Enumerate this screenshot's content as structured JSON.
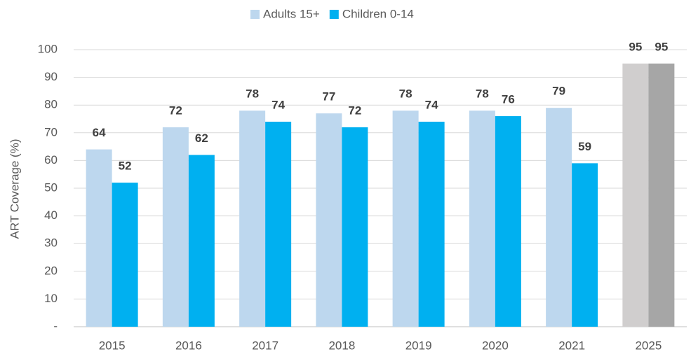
{
  "chart_data": {
    "type": "bar",
    "y_label": "ART Coverage (%)",
    "categories": [
      "2015",
      "2016",
      "2017",
      "2018",
      "2019",
      "2020",
      "2021",
      "2025"
    ],
    "series": [
      {
        "name": "Adults 15+",
        "color": "#bdd7ee",
        "colors": [
          "#bdd7ee",
          "#bdd7ee",
          "#bdd7ee",
          "#bdd7ee",
          "#bdd7ee",
          "#bdd7ee",
          "#bdd7ee",
          "#d0cece"
        ],
        "values": [
          64,
          72,
          78,
          77,
          78,
          78,
          79,
          95
        ]
      },
      {
        "name": "Children 0-14",
        "color": "#00b0f0",
        "colors": [
          "#00b0f0",
          "#00b0f0",
          "#00b0f0",
          "#00b0f0",
          "#00b0f0",
          "#00b0f0",
          "#00b0f0",
          "#a6a6a6"
        ],
        "values": [
          52,
          62,
          74,
          72,
          74,
          76,
          59,
          95
        ]
      }
    ],
    "ylim": [
      0,
      100
    ],
    "yticks": [
      {
        "value": 0,
        "label": "-"
      },
      10,
      20,
      30,
      40,
      50,
      60,
      70,
      80,
      90,
      100
    ],
    "grid": true,
    "legend": "top"
  }
}
